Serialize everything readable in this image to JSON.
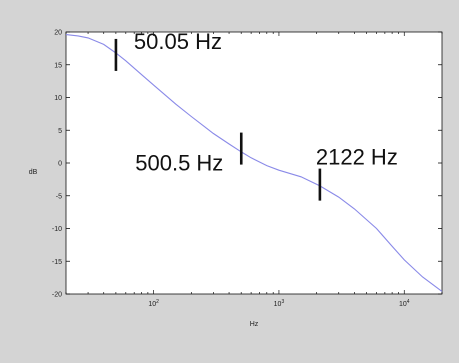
{
  "chart_data": {
    "type": "line",
    "title": "",
    "xlabel": "Hz",
    "ylabel": "dB",
    "xscale": "log",
    "xlim": [
      20,
      20000
    ],
    "ylim": [
      -20,
      20
    ],
    "grid": false,
    "x_ticks": [
      100,
      1000,
      10000
    ],
    "x_tick_labels": [
      {
        "base": "10",
        "exp": "2"
      },
      {
        "base": "10",
        "exp": "3"
      },
      {
        "base": "10",
        "exp": "4"
      }
    ],
    "y_ticks": [
      20,
      15,
      10,
      5,
      0,
      -5,
      -10,
      -15,
      -20
    ],
    "y_tick_labels": [
      "20",
      "15",
      "10",
      "5",
      "0",
      "-5",
      "-10",
      "-15",
      "-20"
    ],
    "line_color": "#8a8ae8",
    "series": [
      {
        "x": [
          20,
          25,
          30,
          40,
          50.05,
          60,
          80,
          100,
          150,
          200,
          300,
          400,
          500.5,
          600,
          800,
          1000,
          1500,
          2122,
          3000,
          4000,
          6000,
          8000,
          10000,
          14000,
          20000
        ],
        "y": [
          19.6,
          19.4,
          19.1,
          18.1,
          16.8,
          15.6,
          13.5,
          11.9,
          9.0,
          7.1,
          4.5,
          2.9,
          1.7,
          0.8,
          -0.4,
          -1.1,
          -2.1,
          -3.5,
          -5.2,
          -7.0,
          -10.0,
          -12.7,
          -14.8,
          -17.4,
          -19.6
        ]
      }
    ],
    "annotations": [
      {
        "text": "50.05 Hz",
        "x": 50.05,
        "y": 16.5
      },
      {
        "text": "500.5 Hz",
        "x": 500.5,
        "y": 2.2
      },
      {
        "text": "2122 Hz",
        "x": 2122,
        "y": -3.3
      }
    ]
  }
}
